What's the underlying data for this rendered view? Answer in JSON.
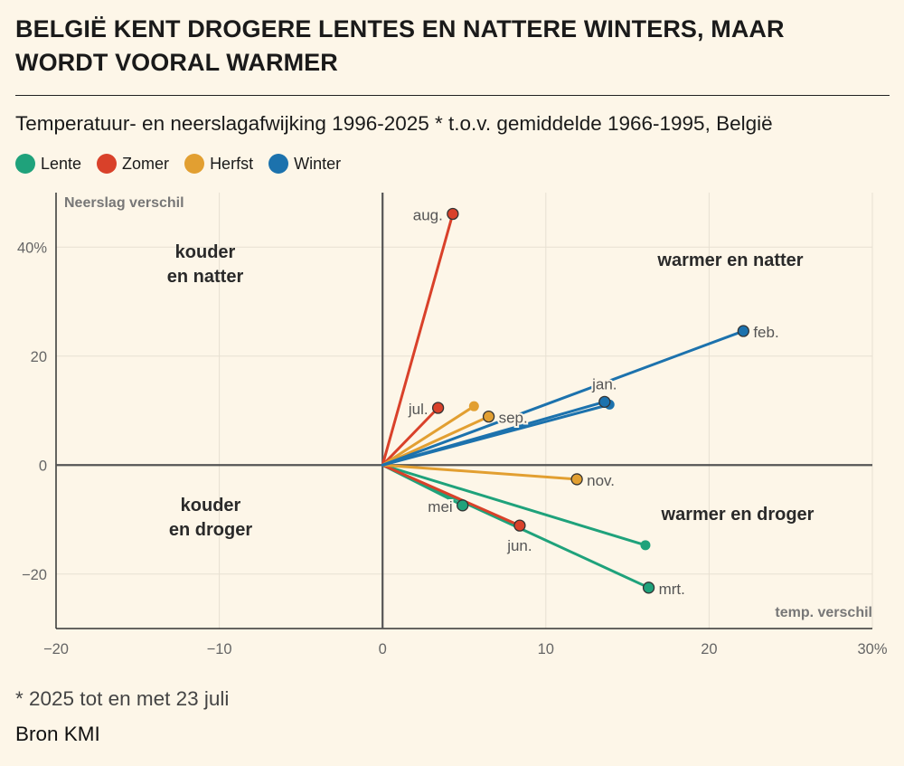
{
  "title": "BELGIË KENT DROGERE LENTES EN NATTERE WINTERS, MAAR WORDT VOORAL WARMER",
  "subtitle": "Temperatuur- en neerslagafwijking 1996-2025 * t.o.v. gemiddelde 1966-1995, België",
  "legend": [
    {
      "label": "Lente",
      "color": "#1fa27b"
    },
    {
      "label": "Zomer",
      "color": "#d9412a"
    },
    {
      "label": "Herfst",
      "color": "#e29f31"
    },
    {
      "label": "Winter",
      "color": "#1c72ad"
    }
  ],
  "footnote": "* 2025 tot en met 23 juli",
  "source": "Bron KMI",
  "chart_data": {
    "type": "scatter",
    "xlabel": "temp. verschil",
    "ylabel": "Neerslag verschil",
    "xlim": [
      -20,
      30
    ],
    "ylim": [
      -30,
      50
    ],
    "x_ticks": [
      "−20",
      "−10",
      "0",
      "10",
      "20",
      "30%"
    ],
    "y_ticks": [
      "−20",
      "0",
      "20",
      "40%"
    ],
    "quadrants": {
      "top_left": "kouder\nen natter",
      "top_right": "warmer en natter",
      "bottom_left": "kouder\nen droger",
      "bottom_right": "warmer en droger"
    },
    "series": [
      {
        "name": "Lente",
        "color": "#1fa27b",
        "points": [
          {
            "label": "mrt.",
            "x": 16.3,
            "y": -22.5
          },
          {
            "label": "",
            "x": 16.1,
            "y": -14.7
          },
          {
            "label": "mei",
            "x": 4.9,
            "y": -7.4
          }
        ]
      },
      {
        "name": "Zomer",
        "color": "#d9412a",
        "points": [
          {
            "label": "jun.",
            "x": 8.4,
            "y": -11.1
          },
          {
            "label": "jul.",
            "x": 3.4,
            "y": 10.5
          },
          {
            "label": "aug.",
            "x": 4.3,
            "y": 46.1
          }
        ]
      },
      {
        "name": "Herfst",
        "color": "#e29f31",
        "points": [
          {
            "label": "sep.",
            "x": 6.5,
            "y": 8.9
          },
          {
            "label": "",
            "x": 5.6,
            "y": 10.8
          },
          {
            "label": "nov.",
            "x": 11.9,
            "y": -2.6
          }
        ]
      },
      {
        "name": "Winter",
        "color": "#1c72ad",
        "points": [
          {
            "label": "",
            "x": 13.9,
            "y": 11.1
          },
          {
            "label": "jan.",
            "x": 13.6,
            "y": 11.6
          },
          {
            "label": "feb.",
            "x": 22.1,
            "y": 24.6
          }
        ]
      }
    ]
  }
}
